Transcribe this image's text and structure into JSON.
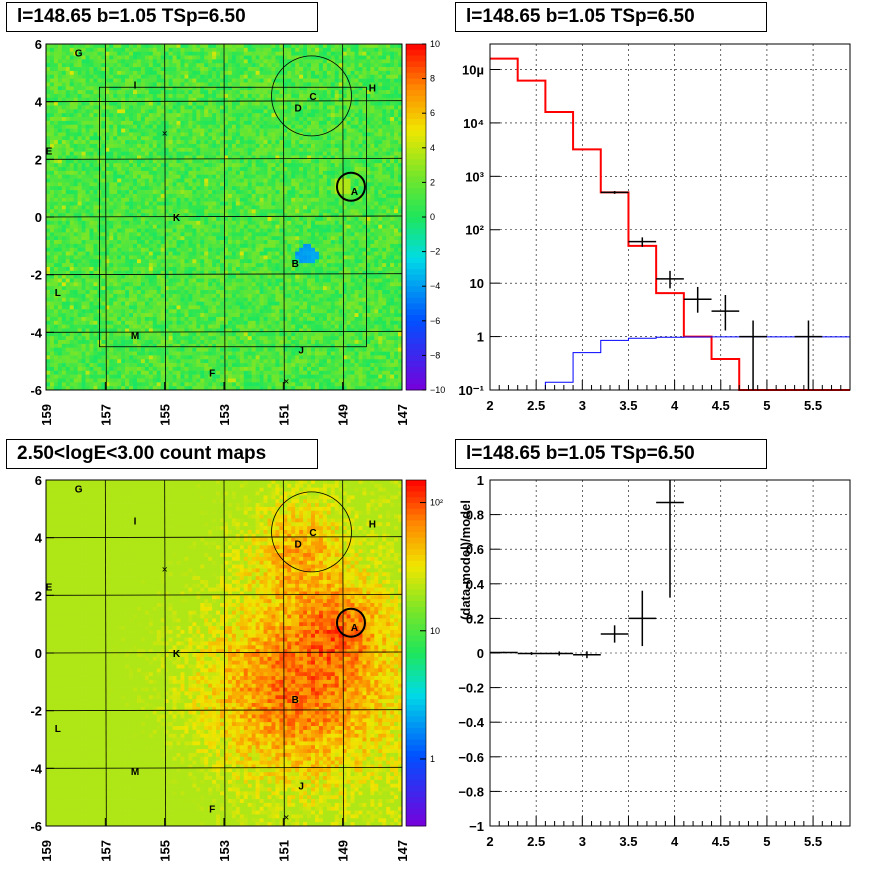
{
  "panels": {
    "map_top_title": "l=148.65 b=1.05 TSp=6.50",
    "spectrum_title": "l=148.65 b=1.05 TSp=6.50",
    "count_map_title": "2.50<logE<3.00 count maps",
    "residual_title": "l=148.65 b=1.05 TSp=6.50"
  },
  "chart_data": [
    {
      "type": "heatmap",
      "title": "l=148.65 b=1.05 TSp=6.50",
      "xlim": [
        159,
        147
      ],
      "ylim": [
        -6,
        6
      ],
      "x_ticks": [
        "159",
        "157",
        "155",
        "153",
        "151",
        "149",
        "147"
      ],
      "y_ticks": [
        "6",
        "4",
        "2",
        "0",
        "-2",
        "-4",
        "-6"
      ],
      "colorbar": {
        "range": [
          -10,
          10
        ],
        "ticks": [
          "10",
          "8",
          "6",
          "4",
          "2",
          "0",
          "−2",
          "−4",
          "−6",
          "−8",
          "−10"
        ]
      },
      "source_labels": [
        {
          "text": "G",
          "l": 157.9,
          "b": 5.7
        },
        {
          "text": "I",
          "l": 156.0,
          "b": 4.6
        },
        {
          "text": "C",
          "l": 150.0,
          "b": 4.2
        },
        {
          "text": "D",
          "l": 150.5,
          "b": 3.8
        },
        {
          "text": "H",
          "l": 148.0,
          "b": 4.5
        },
        {
          "text": "E",
          "l": 158.9,
          "b": 2.3
        },
        {
          "text": "A",
          "l": 148.6,
          "b": 0.9
        },
        {
          "text": "K",
          "l": 154.6,
          "b": 0.0
        },
        {
          "text": "B",
          "l": 150.6,
          "b": -1.6
        },
        {
          "text": "L",
          "l": 158.6,
          "b": -2.6
        },
        {
          "text": "M",
          "l": 156.0,
          "b": -4.1
        },
        {
          "text": "J",
          "l": 150.4,
          "b": -4.6
        },
        {
          "text": "F",
          "l": 153.4,
          "b": -5.4
        }
      ]
    },
    {
      "type": "line",
      "title": "l=148.65 b=1.05 TSp=6.50",
      "log_y": true,
      "xlim": [
        2,
        5.9
      ],
      "ylim": [
        0.1,
        300000
      ],
      "x_ticks": [
        "2",
        "2.5",
        "3",
        "3.5",
        "4",
        "4.5",
        "5",
        "5.5"
      ],
      "y_ticks": [
        "10µ",
        "10⁴",
        "10³",
        "10²",
        "10",
        "1",
        "10⁻¹"
      ],
      "grid": true,
      "series": [
        {
          "color": "#ff0000",
          "bin_edges": [
            2.0,
            2.3,
            2.6,
            2.9,
            3.2,
            3.5,
            3.8,
            4.1,
            4.4,
            4.7,
            5.0,
            5.9
          ],
          "values": [
            160000,
            62000,
            16000,
            3200,
            500,
            50,
            6.5,
            1.0,
            0.38,
            0.1,
            0.1
          ]
        },
        {
          "color": "#0000ff",
          "bin_edges": [
            2.0,
            2.3,
            2.6,
            2.9,
            3.2,
            3.5,
            3.8,
            4.1,
            4.4,
            4.7,
            5.0,
            5.9
          ],
          "values": [
            0.06,
            0.09,
            0.14,
            0.5,
            0.85,
            0.93,
            0.97,
            0.98,
            0.99,
            0.99,
            0.99
          ]
        },
        {
          "color": "#000000",
          "points": [
            {
              "x": 3.35,
              "y": 500,
              "xerr": 0.15,
              "lo": 470,
              "hi": 530
            },
            {
              "x": 3.65,
              "y": 60,
              "xerr": 0.15,
              "lo": 48,
              "hi": 72
            },
            {
              "x": 3.95,
              "y": 12,
              "xerr": 0.15,
              "lo": 8,
              "hi": 17
            },
            {
              "x": 4.25,
              "y": 5,
              "xerr": 0.15,
              "lo": 2.8,
              "hi": 8.5
            },
            {
              "x": 4.55,
              "y": 3,
              "xerr": 0.15,
              "lo": 1.3,
              "hi": 6
            },
            {
              "x": 4.85,
              "y": 1,
              "xerr": 0.15,
              "lo": 0.1,
              "hi": 2
            },
            {
              "x": 5.45,
              "y": 1,
              "xerr": 0.15,
              "lo": 0.1,
              "hi": 2
            }
          ]
        }
      ]
    },
    {
      "type": "heatmap",
      "title": "2.50<logE<3.00 count maps",
      "xlim": [
        159,
        147
      ],
      "ylim": [
        -6,
        6
      ],
      "x_ticks": [
        "159",
        "157",
        "155",
        "153",
        "151",
        "149",
        "147"
      ],
      "y_ticks": [
        "6",
        "4",
        "2",
        "0",
        "-2",
        "-4",
        "-6"
      ],
      "log_color": true,
      "colorbar": {
        "range": [
          0.3,
          150
        ],
        "ticks": [
          "10²",
          "10",
          "1"
        ]
      }
    },
    {
      "type": "scatter",
      "title": "l=148.65 b=1.05 TSp=6.50",
      "ylabel": "(data-model)/model",
      "xlim": [
        2,
        5.9
      ],
      "ylim": [
        -1,
        1
      ],
      "x_ticks": [
        "2",
        "2.5",
        "3",
        "3.5",
        "4",
        "4.5",
        "5",
        "5.5"
      ],
      "y_ticks": [
        "1",
        "0.8",
        "0.6",
        "0.4",
        "0.2",
        "0",
        "−0.2",
        "−0.4",
        "−0.6",
        "−0.8",
        "−1"
      ],
      "grid": true,
      "points": [
        {
          "x": 2.15,
          "y": 0.003,
          "xerr": 0.15,
          "yerr": 0.004
        },
        {
          "x": 2.45,
          "y": -0.003,
          "xerr": 0.15,
          "yerr": 0.008
        },
        {
          "x": 2.75,
          "y": -0.003,
          "xerr": 0.15,
          "yerr": 0.012
        },
        {
          "x": 3.05,
          "y": -0.01,
          "xerr": 0.15,
          "yerr": 0.02
        },
        {
          "x": 3.35,
          "y": 0.11,
          "xerr": 0.15,
          "yerr": 0.05
        },
        {
          "x": 3.65,
          "y": 0.2,
          "xerr": 0.15,
          "yerr": 0.16
        },
        {
          "x": 3.95,
          "y": 0.87,
          "xerr": 0.15,
          "yerr": 0.55
        }
      ]
    }
  ]
}
